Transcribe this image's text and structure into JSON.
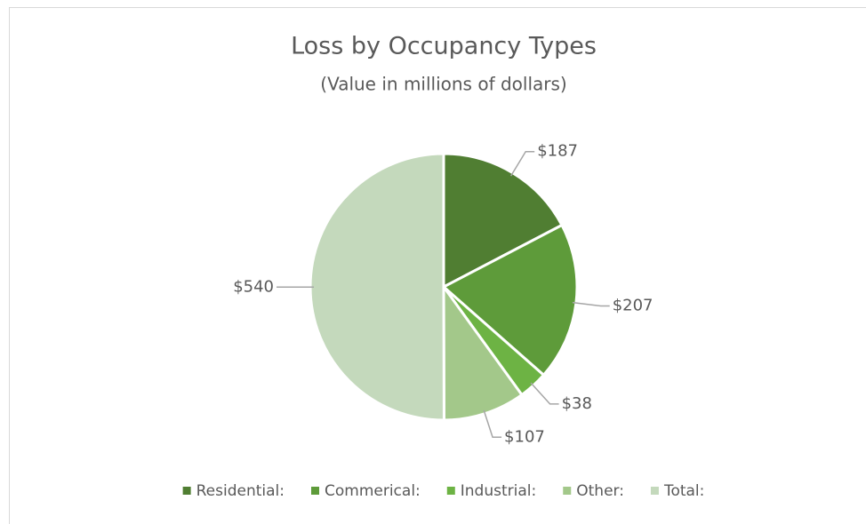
{
  "chart_data": {
    "type": "pie",
    "title": "Loss by Occupancy Types",
    "subtitle": "(Value in millions of dollars)",
    "categories": [
      "Residential:",
      "Commerical:",
      "Industrial:",
      "Other:",
      "Total:"
    ],
    "values": [
      187,
      207,
      38,
      107,
      540
    ],
    "value_labels": [
      "$187",
      "$207",
      "$38",
      "$107",
      "$540"
    ],
    "colors": [
      "#507e32",
      "#5e9b3a",
      "#6db344",
      "#a3c88a",
      "#c4d9bc"
    ],
    "legend": "bottom"
  }
}
